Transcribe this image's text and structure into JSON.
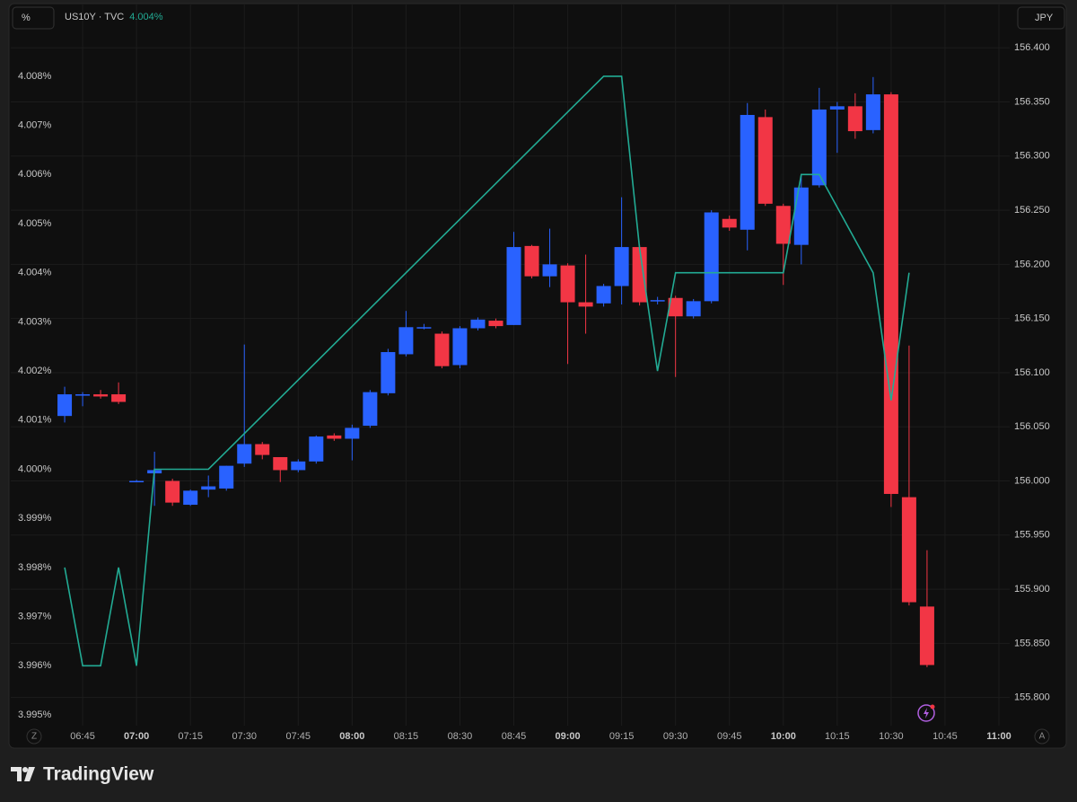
{
  "chart_data": {
    "type": "candlestick",
    "y_label": "%",
    "y2_label": "JPY",
    "series": [
      {
        "name": "US10Y · TVC",
        "type": "line",
        "color": "#22ab94",
        "last_value_label": "4.004%",
        "x": [
          "06:40",
          "06:45",
          "06:50",
          "06:55",
          "07:00",
          "07:05",
          "07:20",
          "09:10",
          "09:15",
          "09:20",
          "09:25",
          "09:30",
          "10:00",
          "10:05",
          "10:10",
          "10:25",
          "10:30",
          "10:35"
        ],
        "values": [
          3.998,
          3.996,
          3.996,
          3.998,
          3.996,
          4.0,
          4.0,
          4.008,
          4.008,
          4.0045,
          4.002,
          4.004,
          4.004,
          4.006,
          4.006,
          4.004,
          4.0014,
          4.004
        ]
      }
    ],
    "candles": {
      "axis": "y2",
      "up_color": "#2962ff",
      "down_color": "#f23645",
      "x": [
        "06:40",
        "06:45",
        "06:50",
        "06:55",
        "07:00",
        "07:05",
        "07:10",
        "07:15",
        "07:20",
        "07:25",
        "07:30",
        "07:35",
        "07:40",
        "07:45",
        "07:50",
        "07:55",
        "08:00",
        "08:05",
        "08:10",
        "08:15",
        "08:20",
        "08:25",
        "08:30",
        "08:35",
        "08:40",
        "08:45",
        "08:50",
        "08:55",
        "09:00",
        "09:05",
        "09:10",
        "09:15",
        "09:20",
        "09:25",
        "09:30",
        "09:35",
        "09:40",
        "09:45",
        "09:50",
        "09:55",
        "10:00",
        "10:05",
        "10:10",
        "10:15",
        "10:20",
        "10:25",
        "10:30",
        "10:35",
        "10:40"
      ],
      "open": [
        156.06,
        156.08,
        156.08,
        156.08,
        156.0,
        156.007,
        156.0,
        155.978,
        155.992,
        155.993,
        156.016,
        156.034,
        156.022,
        156.01,
        156.018,
        156.042,
        156.039,
        156.051,
        156.081,
        156.117,
        156.142,
        156.136,
        156.107,
        156.141,
        156.148,
        156.144,
        156.217,
        156.189,
        156.199,
        156.165,
        156.164,
        156.18,
        156.216,
        156.166,
        156.169,
        156.152,
        156.166,
        156.242,
        156.232,
        156.336,
        156.254,
        156.218,
        156.273,
        156.343,
        156.346,
        156.324,
        156.357,
        155.985,
        155.884
      ],
      "high": [
        156.087,
        156.082,
        156.084,
        156.091,
        156.001,
        156.027,
        156.002,
        155.992,
        156.005,
        156.014,
        156.126,
        156.036,
        156.022,
        156.02,
        156.042,
        156.044,
        156.052,
        156.084,
        156.122,
        156.157,
        156.145,
        156.138,
        156.143,
        156.151,
        156.15,
        156.23,
        156.218,
        156.233,
        156.201,
        156.209,
        156.182,
        156.262,
        156.218,
        156.17,
        156.171,
        156.168,
        156.25,
        156.245,
        156.349,
        156.343,
        156.256,
        156.282,
        156.363,
        156.35,
        156.358,
        156.373,
        156.359,
        156.125,
        155.936
      ],
      "low": [
        156.054,
        156.069,
        156.076,
        156.071,
        155.999,
        155.977,
        155.977,
        155.977,
        155.985,
        155.991,
        156.013,
        156.02,
        155.999,
        156.008,
        156.016,
        156.037,
        156.019,
        156.049,
        156.079,
        156.115,
        156.14,
        156.104,
        156.104,
        156.139,
        156.141,
        156.144,
        156.187,
        156.179,
        156.108,
        156.136,
        156.161,
        156.163,
        156.162,
        156.163,
        156.096,
        156.15,
        156.164,
        156.231,
        156.213,
        156.254,
        156.181,
        156.2,
        156.271,
        156.303,
        156.316,
        156.321,
        155.976,
        155.885,
        155.828
      ],
      "close": [
        156.08,
        156.08,
        156.078,
        156.073,
        156.0,
        156.01,
        155.98,
        155.991,
        155.995,
        156.014,
        156.034,
        156.024,
        156.01,
        156.018,
        156.041,
        156.039,
        156.049,
        156.082,
        156.119,
        156.142,
        156.142,
        156.106,
        156.141,
        156.149,
        156.143,
        156.216,
        156.189,
        156.2,
        156.165,
        156.161,
        156.18,
        156.216,
        156.165,
        156.167,
        156.152,
        156.166,
        156.248,
        156.234,
        156.338,
        156.256,
        156.219,
        156.271,
        156.343,
        156.346,
        156.323,
        156.357,
        155.988,
        155.888,
        155.83
      ]
    },
    "xlim": [
      "06:25",
      "11:03"
    ],
    "xticks": [
      "06:45",
      "07:00",
      "07:15",
      "07:30",
      "07:45",
      "08:00",
      "08:15",
      "08:30",
      "08:45",
      "09:00",
      "09:15",
      "09:30",
      "09:45",
      "10:00",
      "10:15",
      "10:30",
      "10:45",
      "11:00"
    ],
    "ylim": [
      3.99478,
      4.00946
    ],
    "yticks": [
      {
        "value": 3.995,
        "label": "3.995%"
      },
      {
        "value": 3.996,
        "label": "3.996%"
      },
      {
        "value": 3.997,
        "label": "3.997%"
      },
      {
        "value": 3.998,
        "label": "3.998%"
      },
      {
        "value": 3.999,
        "label": "3.999%"
      },
      {
        "value": 4.0,
        "label": "4.000%"
      },
      {
        "value": 4.001,
        "label": "4.001%"
      },
      {
        "value": 4.002,
        "label": "4.002%"
      },
      {
        "value": 4.003,
        "label": "4.003%"
      },
      {
        "value": 4.004,
        "label": "4.004%"
      },
      {
        "value": 4.005,
        "label": "4.005%"
      },
      {
        "value": 4.006,
        "label": "4.006%"
      },
      {
        "value": 4.007,
        "label": "4.007%"
      },
      {
        "value": 4.008,
        "label": "4.008%"
      }
    ],
    "y2lim": [
      155.774,
      156.44
    ],
    "y2ticks": [
      {
        "value": 155.8,
        "label": "155.800"
      },
      {
        "value": 155.85,
        "label": "155.850"
      },
      {
        "value": 155.9,
        "label": "155.900"
      },
      {
        "value": 155.95,
        "label": "155.950"
      },
      {
        "value": 156.0,
        "label": "156.000"
      },
      {
        "value": 156.05,
        "label": "156.050"
      },
      {
        "value": 156.1,
        "label": "156.100"
      },
      {
        "value": 156.15,
        "label": "156.150"
      },
      {
        "value": 156.2,
        "label": "156.200"
      },
      {
        "value": 156.25,
        "label": "156.250"
      },
      {
        "value": 156.3,
        "label": "156.300"
      },
      {
        "value": 156.35,
        "label": "156.350"
      },
      {
        "value": 156.4,
        "label": "156.400"
      }
    ],
    "grid": true,
    "axis_buttons": [
      "Z",
      "A"
    ]
  },
  "brand": "TradingView"
}
